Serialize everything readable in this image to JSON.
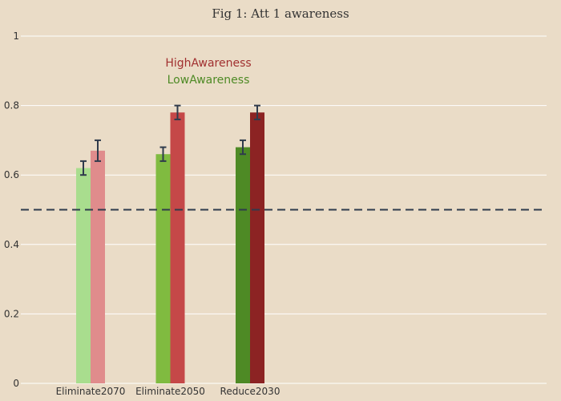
{
  "chart_data": {
    "type": "bar",
    "title": "Fig 1: Att 1 awareness",
    "xlabel": "",
    "ylabel": "",
    "categories": [
      "Eliminate2070",
      "Eliminate2050",
      "Reduce2030"
    ],
    "series": [
      {
        "name": "LowAwareness",
        "values": [
          0.62,
          0.66,
          0.68
        ],
        "error": [
          0.02,
          0.02,
          0.02
        ],
        "colors": [
          "#a9dd8e",
          "#80bb40",
          "#4e8a25"
        ],
        "legend_color": "#4e8a25"
      },
      {
        "name": "HighAwareness",
        "values": [
          0.67,
          0.78,
          0.78
        ],
        "error": [
          0.03,
          0.02,
          0.02
        ],
        "colors": [
          "#e08c8c",
          "#c54848",
          "#8c2323"
        ],
        "legend_color": "#a13030"
      }
    ],
    "ylim": [
      0,
      1
    ],
    "yticks": [
      0,
      0.2,
      0.4,
      0.6,
      0.8,
      1
    ],
    "ytick_labels": [
      "0",
      "0.2",
      "0.4",
      "0.6",
      "0.8",
      "1"
    ],
    "reference_line": 0.5,
    "grid": true,
    "legend_placement": "top-center",
    "colors": {
      "background": "#eadcc7",
      "grid": "#ffffff",
      "error_bar": "#2f3b4c",
      "reference_line": "#2f3b4c"
    }
  }
}
